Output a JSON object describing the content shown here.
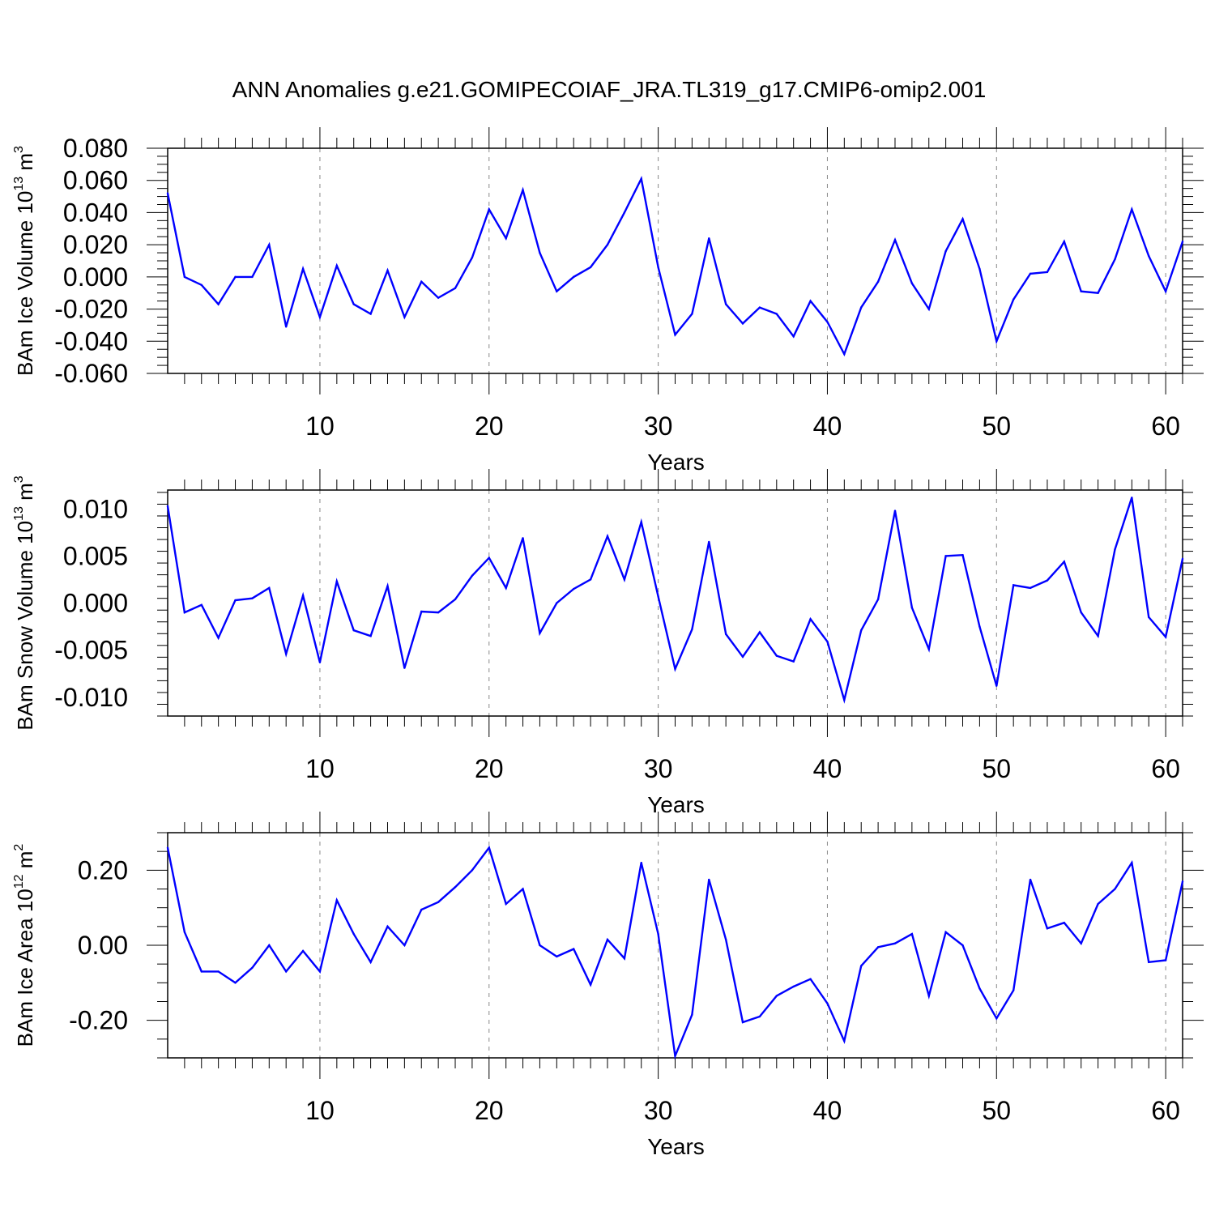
{
  "figure_title": "ANN Anomalies g.e21.GOMIPECOIAF_JRA.TL319_g17.CMIP6-omip2.001",
  "line_color": "#0000ff",
  "chart_data": [
    {
      "type": "line",
      "title": "ANN Anomalies g.e21.GOMIPECOIAF_JRA.TL319_g17.CMIP6-omip2.001",
      "xlabel": "Years",
      "ylabel_prefix": "BAm Ice Volume 10",
      "ylabel_exp": "13",
      "ylabel_unit": "m",
      "ylabel_unit_exp": "3",
      "xlim": [
        1,
        61
      ],
      "ylim": [
        -0.06,
        0.08
      ],
      "x_ticks": [
        10,
        20,
        30,
        40,
        50,
        60
      ],
      "y_ticks": [
        -0.06,
        -0.04,
        -0.02,
        0.0,
        0.02,
        0.04,
        0.06,
        0.08
      ],
      "y_tick_labels": [
        "-0.060",
        "-0.040",
        "-0.020",
        "0.000",
        "0.020",
        "0.040",
        "0.060",
        "0.080"
      ],
      "grid": "vertical dashed at major x ticks",
      "x": [
        1,
        2,
        3,
        4,
        5,
        6,
        7,
        8,
        9,
        10,
        11,
        12,
        13,
        14,
        15,
        16,
        17,
        18,
        19,
        20,
        21,
        22,
        23,
        24,
        25,
        26,
        27,
        28,
        29,
        30,
        31,
        32,
        33,
        34,
        35,
        36,
        37,
        38,
        39,
        40,
        41,
        42,
        43,
        44,
        45,
        46,
        47,
        48,
        49,
        50,
        51,
        52,
        53,
        54,
        55,
        56,
        57,
        58,
        59,
        60,
        61
      ],
      "values": [
        0.052,
        0.0,
        -0.005,
        -0.017,
        0.0,
        0.0,
        0.02,
        -0.031,
        0.005,
        -0.025,
        0.007,
        -0.017,
        -0.023,
        0.004,
        -0.025,
        -0.003,
        -0.013,
        -0.007,
        0.012,
        0.042,
        0.024,
        0.054,
        0.015,
        -0.009,
        0.0,
        0.006,
        0.02,
        0.04,
        0.061,
        0.006,
        -0.036,
        -0.023,
        0.024,
        -0.017,
        -0.029,
        -0.019,
        -0.023,
        -0.037,
        -0.015,
        -0.028,
        -0.048,
        -0.019,
        -0.003,
        0.023,
        -0.004,
        -0.02,
        0.016,
        0.036,
        0.005,
        -0.04,
        -0.014,
        0.002,
        0.003,
        0.022,
        -0.009,
        -0.01,
        0.011,
        0.042,
        0.013,
        -0.009,
        0.022
      ]
    },
    {
      "type": "line",
      "title": "",
      "xlabel": "Years",
      "ylabel_prefix": "BAm Snow Volume 10",
      "ylabel_exp": "13",
      "ylabel_unit": "m",
      "ylabel_unit_exp": "3",
      "xlim": [
        1,
        61
      ],
      "ylim": [
        -0.012,
        0.012
      ],
      "x_ticks": [
        10,
        20,
        30,
        40,
        50,
        60
      ],
      "y_ticks": [
        -0.01,
        -0.005,
        0.0,
        0.005,
        0.01
      ],
      "y_tick_labels": [
        "-0.010",
        "-0.005",
        "0.000",
        "0.005",
        "0.010"
      ],
      "grid": "vertical dashed at major x ticks",
      "x": [
        1,
        2,
        3,
        4,
        5,
        6,
        7,
        8,
        9,
        10,
        11,
        12,
        13,
        14,
        15,
        16,
        17,
        18,
        19,
        20,
        21,
        22,
        23,
        24,
        25,
        26,
        27,
        28,
        29,
        30,
        31,
        32,
        33,
        34,
        35,
        36,
        37,
        38,
        39,
        40,
        41,
        42,
        43,
        44,
        45,
        46,
        47,
        48,
        49,
        50,
        51,
        52,
        53,
        54,
        55,
        56,
        57,
        58,
        59,
        60,
        61
      ],
      "values": [
        0.0103,
        -0.001,
        -0.0002,
        -0.0037,
        0.0003,
        0.0005,
        0.0016,
        -0.0054,
        0.0008,
        -0.0063,
        0.0023,
        -0.0029,
        -0.0035,
        0.0018,
        -0.0069,
        -0.0009,
        -0.001,
        0.0004,
        0.0029,
        0.0048,
        0.0016,
        0.0069,
        -0.0032,
        0.0,
        0.0015,
        0.0025,
        0.0071,
        0.0025,
        0.0086,
        0.0007,
        -0.007,
        -0.0028,
        0.0065,
        -0.0033,
        -0.0057,
        -0.0031,
        -0.0056,
        -0.0062,
        -0.0017,
        -0.0041,
        -0.0103,
        -0.0029,
        0.0004,
        0.0098,
        -0.0005,
        -0.0049,
        0.005,
        0.0051,
        -0.0025,
        -0.0088,
        0.0019,
        0.0016,
        0.0024,
        0.0044,
        -0.001,
        -0.0035,
        0.0057,
        0.0112,
        -0.0015,
        -0.0036,
        0.0047
      ]
    },
    {
      "type": "line",
      "title": "",
      "xlabel": "Years",
      "ylabel_prefix": "BAm Ice Area 10",
      "ylabel_exp": "12",
      "ylabel_unit": "m",
      "ylabel_unit_exp": "2",
      "xlim": [
        1,
        61
      ],
      "ylim": [
        -0.3,
        0.3
      ],
      "x_ticks": [
        10,
        20,
        30,
        40,
        50,
        60
      ],
      "y_ticks": [
        -0.2,
        0.0,
        0.2
      ],
      "y_tick_labels": [
        "-0.20",
        "0.00",
        "0.20"
      ],
      "grid": "vertical dashed at major x ticks",
      "x": [
        1,
        2,
        3,
        4,
        5,
        6,
        7,
        8,
        9,
        10,
        11,
        12,
        13,
        14,
        15,
        16,
        17,
        18,
        19,
        20,
        21,
        22,
        23,
        24,
        25,
        26,
        27,
        28,
        29,
        30,
        31,
        32,
        33,
        34,
        35,
        36,
        37,
        38,
        39,
        40,
        41,
        42,
        43,
        44,
        45,
        46,
        47,
        48,
        49,
        50,
        51,
        52,
        53,
        54,
        55,
        56,
        57,
        58,
        59,
        60,
        61
      ],
      "values": [
        0.26,
        0.035,
        -0.07,
        -0.07,
        -0.1,
        -0.06,
        0.0,
        -0.07,
        -0.015,
        -0.07,
        0.12,
        0.03,
        -0.045,
        0.05,
        0.0,
        0.095,
        0.115,
        0.155,
        0.2,
        0.26,
        0.11,
        0.15,
        0.0,
        -0.03,
        -0.01,
        -0.105,
        0.015,
        -0.035,
        0.22,
        0.03,
        -0.295,
        -0.185,
        0.175,
        0.015,
        -0.205,
        -0.19,
        -0.135,
        -0.11,
        -0.09,
        -0.155,
        -0.255,
        -0.055,
        -0.005,
        0.005,
        0.03,
        -0.135,
        0.035,
        0.0,
        -0.115,
        -0.195,
        -0.12,
        0.175,
        0.045,
        0.06,
        0.005,
        0.11,
        0.15,
        0.22,
        -0.045,
        -0.04,
        0.17
      ]
    }
  ]
}
